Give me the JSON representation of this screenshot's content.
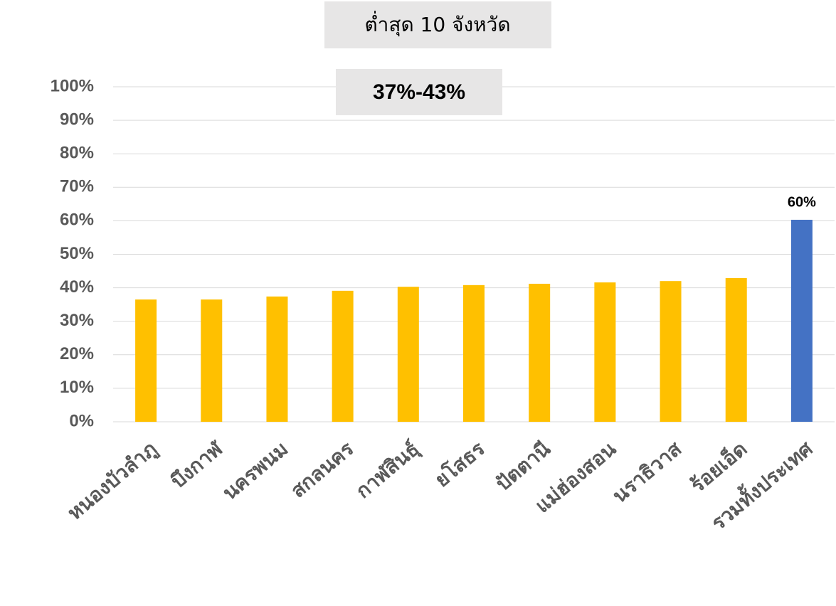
{
  "chart_data": {
    "type": "bar",
    "title": "ต่ำสุด 10 จังหวัด",
    "annotation": "37%-43%",
    "categories": [
      "หนองบัวลำภู",
      "บึงกาฬ",
      "นครพนม",
      "สกลนคร",
      "กาฬสินธุ์",
      "ยโสธร",
      "ปัตตานี",
      "แม่ฮ่องสอน",
      "นราธิวาส",
      "ร้อยเอ็ด",
      "รวมทั้งประเทศ"
    ],
    "values": [
      36.5,
      36.5,
      37.4,
      39.1,
      40.3,
      40.8,
      41.2,
      41.6,
      42.0,
      42.9,
      60.3
    ],
    "value_labels": [
      null,
      null,
      null,
      null,
      null,
      null,
      null,
      null,
      null,
      null,
      "60%"
    ],
    "colors": [
      "#ffc000",
      "#ffc000",
      "#ffc000",
      "#ffc000",
      "#ffc000",
      "#ffc000",
      "#ffc000",
      "#ffc000",
      "#ffc000",
      "#ffc000",
      "#4472c4"
    ],
    "ylim": [
      0,
      100
    ],
    "yticks": [
      {
        "value": 0,
        "label": "0%"
      },
      {
        "value": 10,
        "label": "10%"
      },
      {
        "value": 20,
        "label": "20%"
      },
      {
        "value": 30,
        "label": "30%"
      },
      {
        "value": 40,
        "label": "40%"
      },
      {
        "value": 50,
        "label": "50%"
      },
      {
        "value": 60,
        "label": "60%"
      },
      {
        "value": 70,
        "label": "70%"
      },
      {
        "value": 80,
        "label": "80%"
      },
      {
        "value": 90,
        "label": "90%"
      },
      {
        "value": 100,
        "label": "100%"
      }
    ],
    "grid": true
  }
}
